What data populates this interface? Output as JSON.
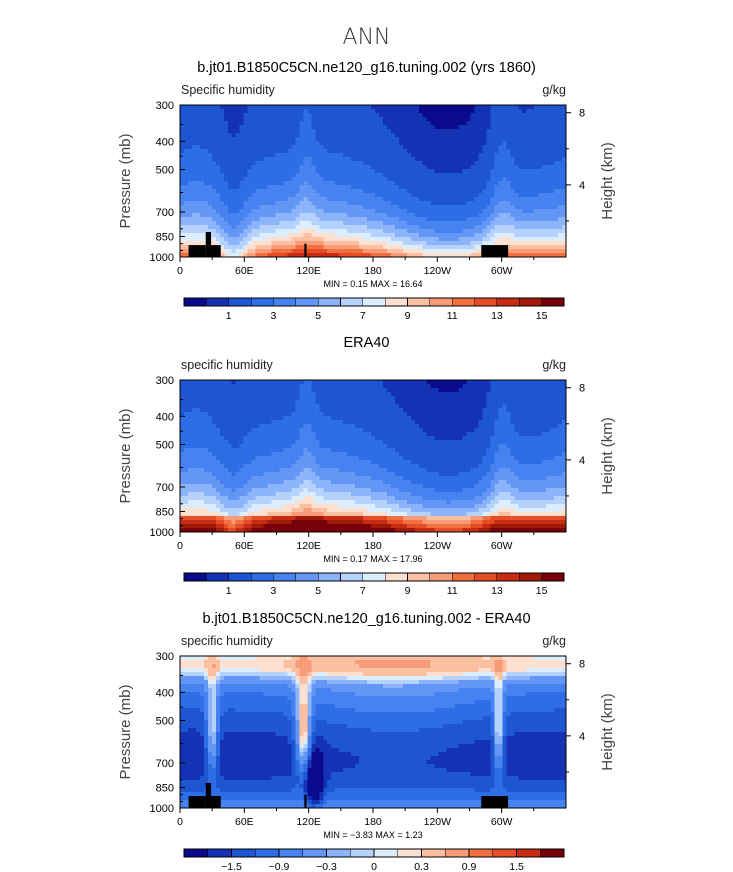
{
  "figure": {
    "title": "ANN"
  },
  "chart_data": [
    {
      "type": "heatmap",
      "title": "b.jt01.B1850C5CN.ne120_g16.tuning.002 (yrs 1860)",
      "left_label": "Specific humidity",
      "right_label": "g/kg",
      "ylabel": "Pressure (mb)",
      "y2label": "Height (km)",
      "x_ticks": [
        "0",
        "60E",
        "120E",
        "180",
        "120W",
        "60W"
      ],
      "x_tick_lon": [
        0,
        60,
        120,
        180,
        240,
        300
      ],
      "xlim": [
        0,
        360
      ],
      "y_ticks": [
        "300",
        "400",
        "500",
        "700",
        "850",
        "1000"
      ],
      "y_tick_p": [
        300,
        400,
        500,
        700,
        850,
        1000
      ],
      "ylim": [
        1000,
        300
      ],
      "y2_ticks": [
        "8",
        "4"
      ],
      "y2_tick_km": [
        8,
        4
      ],
      "stats": "MIN =    0.15   MAX =   16.64",
      "min": 0.15,
      "max": 16.64,
      "colorbar_labels": [
        "1",
        "3",
        "5",
        "7",
        "9",
        "11",
        "13",
        "15"
      ],
      "colorbar_values": [
        1,
        3,
        5,
        7,
        9,
        11,
        13,
        15
      ],
      "levels": [
        0.5,
        1,
        2,
        3,
        4,
        5,
        6,
        7,
        8,
        9,
        10,
        11,
        12,
        13,
        14,
        15
      ],
      "colors": [
        "#0a0a8c",
        "#1433b4",
        "#1e55d2",
        "#2d6ee6",
        "#4682f0",
        "#6496f5",
        "#8cb4fa",
        "#b4d2fc",
        "#dceefe",
        "#fde0cf",
        "#fbbfa2",
        "#f79b79",
        "#f0703f",
        "#e44d26",
        "#c82b14",
        "#a01a0a",
        "#78000a"
      ],
      "terrain": [
        {
          "lon_from": 8,
          "lon_to": 24,
          "p_top": 910
        },
        {
          "lon_from": 24,
          "lon_to": 29,
          "p_top": 820
        },
        {
          "lon_from": 29,
          "lon_to": 38,
          "p_top": 910
        },
        {
          "lon_from": 116,
          "lon_to": 118,
          "p_top": 900
        },
        {
          "lon_from": 281,
          "lon_to": 306,
          "p_top": 910
        }
      ]
    },
    {
      "type": "heatmap",
      "title": "ERA40",
      "left_label": "specific humidity",
      "right_label": "g/kg",
      "ylabel": "Pressure (mb)",
      "y2label": "Height (km)",
      "x_ticks": [
        "0",
        "60E",
        "120E",
        "180",
        "120W",
        "60W"
      ],
      "x_tick_lon": [
        0,
        60,
        120,
        180,
        240,
        300
      ],
      "xlim": [
        0,
        360
      ],
      "y_ticks": [
        "300",
        "400",
        "500",
        "700",
        "850",
        "1000"
      ],
      "y_tick_p": [
        300,
        400,
        500,
        700,
        850,
        1000
      ],
      "ylim": [
        1000,
        300
      ],
      "y2_ticks": [
        "8",
        "4"
      ],
      "y2_tick_km": [
        8,
        4
      ],
      "stats": "MIN =    0.17   MAX =   17.96",
      "min": 0.17,
      "max": 17.96,
      "colorbar_labels": [
        "1",
        "3",
        "5",
        "7",
        "9",
        "11",
        "13",
        "15"
      ],
      "colorbar_values": [
        1,
        3,
        5,
        7,
        9,
        11,
        13,
        15
      ],
      "levels": [
        0.5,
        1,
        2,
        3,
        4,
        5,
        6,
        7,
        8,
        9,
        10,
        11,
        12,
        13,
        14,
        15
      ],
      "colors": [
        "#0a0a8c",
        "#1433b4",
        "#1e55d2",
        "#2d6ee6",
        "#4682f0",
        "#6496f5",
        "#8cb4fa",
        "#b4d2fc",
        "#dceefe",
        "#fde0cf",
        "#fbbfa2",
        "#f79b79",
        "#f0703f",
        "#e44d26",
        "#c82b14",
        "#a01a0a",
        "#78000a"
      ],
      "terrain": []
    },
    {
      "type": "heatmap",
      "title": "b.jt01.B1850C5CN.ne120_g16.tuning.002 - ERA40",
      "left_label": "specific humidity",
      "right_label": "g/kg",
      "ylabel": "Pressure (mb)",
      "y2label": "Height (km)",
      "x_ticks": [
        "0",
        "60E",
        "120E",
        "180",
        "120W",
        "60W"
      ],
      "x_tick_lon": [
        0,
        60,
        120,
        180,
        240,
        300
      ],
      "xlim": [
        0,
        360
      ],
      "y_ticks": [
        "300",
        "400",
        "500",
        "700",
        "850",
        "1000"
      ],
      "y_tick_p": [
        300,
        400,
        500,
        700,
        850,
        1000
      ],
      "ylim": [
        1000,
        300
      ],
      "y2_ticks": [
        "8",
        "4"
      ],
      "y2_tick_km": [
        8,
        4
      ],
      "stats": "MIN =   −3.83   MAX =    1.23",
      "min": -3.83,
      "max": 1.23,
      "colorbar_labels": [
        "−1.5",
        "−0.9",
        "−0.3",
        "0",
        "0.3",
        "0.9",
        "1.5"
      ],
      "colorbar_values": [
        -1.5,
        -0.9,
        -0.3,
        0,
        0.3,
        0.9,
        1.5
      ],
      "levels": [
        -1.8,
        -1.5,
        -1.2,
        -0.9,
        -0.6,
        -0.3,
        -0.15,
        0,
        0.15,
        0.3,
        0.6,
        0.9,
        1.2,
        1.5,
        1.8
      ],
      "colors": [
        "#0a0a8c",
        "#1433b4",
        "#1e55d2",
        "#2d6ee6",
        "#4682f0",
        "#6496f5",
        "#8cb4fa",
        "#b4d2fc",
        "#dceefe",
        "#fde0cf",
        "#fbbfa2",
        "#f79b79",
        "#f0703f",
        "#e44d26",
        "#c82b14",
        "#78000a"
      ],
      "terrain": [
        {
          "lon_from": 8,
          "lon_to": 24,
          "p_top": 910
        },
        {
          "lon_from": 24,
          "lon_to": 29,
          "p_top": 820
        },
        {
          "lon_from": 29,
          "lon_to": 38,
          "p_top": 910
        },
        {
          "lon_from": 116,
          "lon_to": 118,
          "p_top": 900
        },
        {
          "lon_from": 281,
          "lon_to": 306,
          "p_top": 910
        }
      ]
    }
  ]
}
